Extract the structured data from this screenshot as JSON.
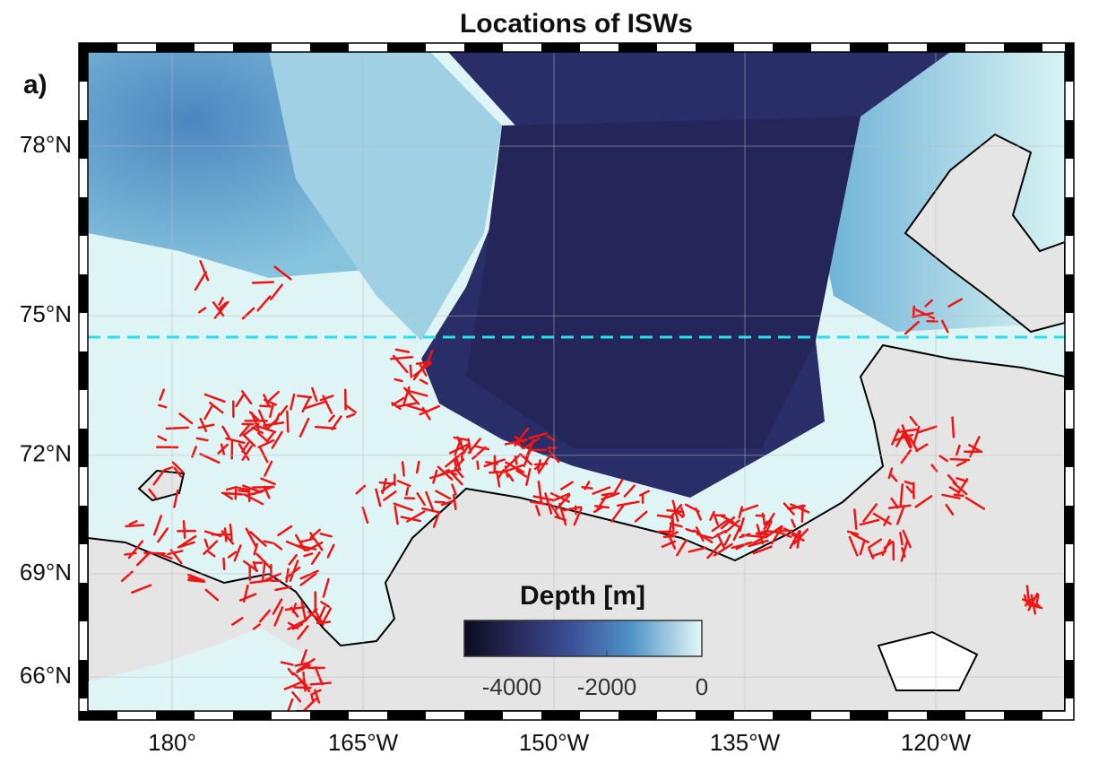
{
  "title": "Locations of ISWs",
  "panel_label": "a)",
  "map": {
    "lat_ticks": [
      {
        "value": 78,
        "label": "78°N"
      },
      {
        "value": 75,
        "label": "75°N"
      },
      {
        "value": 72,
        "label": "72°N"
      },
      {
        "value": 69,
        "label": "69°N"
      },
      {
        "value": 66,
        "label": "66°N"
      }
    ],
    "lon_ticks": [
      {
        "value": 180,
        "label": "180°"
      },
      {
        "value": -165,
        "label": "165°W"
      },
      {
        "value": -150,
        "label": "150°W"
      },
      {
        "value": -135,
        "label": "135°W"
      },
      {
        "value": -120,
        "label": "120°W"
      }
    ]
  },
  "colorbar": {
    "title": "Depth [m]",
    "lim": [
      -5000,
      0
    ],
    "ticks": [
      -4000,
      -2000,
      0
    ]
  }
}
